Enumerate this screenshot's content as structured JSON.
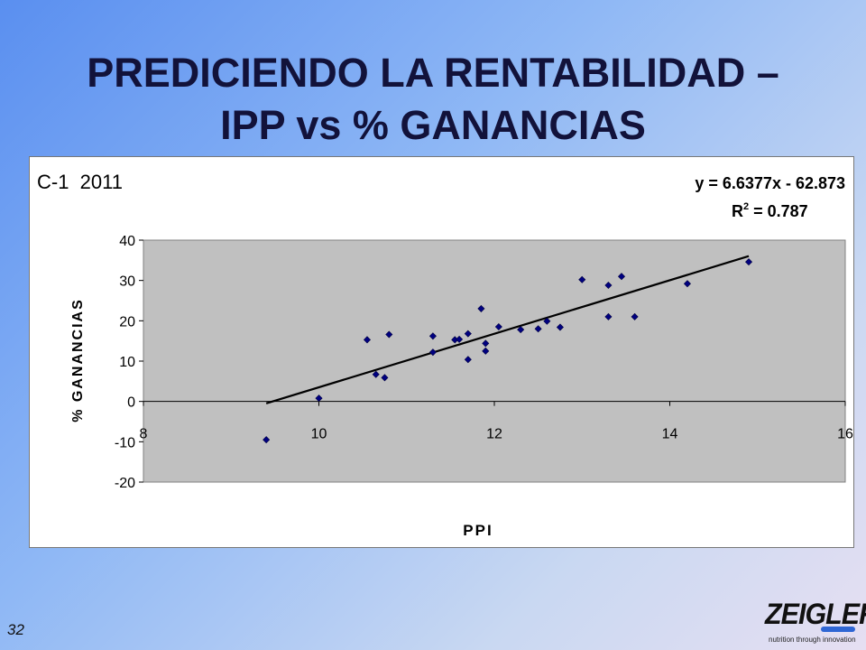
{
  "slide": {
    "title_line1": "PREDICIENDO LA RENTABILIDAD –",
    "title_line2": "IPP vs % GANANCIAS",
    "page_number": "32"
  },
  "logo": {
    "name": "ZEIGLER.",
    "tagline": "nutrition through innovation",
    "accent_color": "#2f66d4"
  },
  "chart_data": {
    "type": "scatter",
    "title": "C-1  2011",
    "equation": "y = 6.6377x - 62.873",
    "r2_label": "R",
    "r2_sup": "2",
    "r2_value": " = 0.787",
    "xlabel": "PPI",
    "ylabel": "% GANANCIAS",
    "xlim": [
      8,
      16
    ],
    "ylim": [
      -20,
      40
    ],
    "x_ticks": [
      8,
      10,
      12,
      14,
      16
    ],
    "y_ticks": [
      40,
      30,
      20,
      10,
      0,
      -10,
      -20
    ],
    "plot_background": "#c0c0c0",
    "marker_color": "#000080",
    "trendline": {
      "slope": 6.6377,
      "intercept": -62.873,
      "x_range": [
        9.4,
        14.9
      ]
    },
    "series": [
      {
        "points": [
          [
            9.4,
            -9.5
          ],
          [
            10.0,
            0.8
          ],
          [
            10.55,
            15.3
          ],
          [
            10.65,
            6.7
          ],
          [
            10.75,
            5.9
          ],
          [
            10.8,
            16.6
          ],
          [
            11.3,
            16.2
          ],
          [
            11.3,
            12.2
          ],
          [
            11.55,
            15.3
          ],
          [
            11.6,
            15.4
          ],
          [
            11.7,
            16.8
          ],
          [
            11.7,
            10.4
          ],
          [
            11.85,
            23.0
          ],
          [
            11.9,
            14.4
          ],
          [
            11.9,
            12.5
          ],
          [
            12.05,
            18.5
          ],
          [
            12.3,
            17.8
          ],
          [
            12.5,
            18.0
          ],
          [
            12.6,
            19.9
          ],
          [
            12.75,
            18.4
          ],
          [
            13.0,
            30.2
          ],
          [
            13.3,
            28.8
          ],
          [
            13.3,
            21.0
          ],
          [
            13.45,
            31.0
          ],
          [
            13.6,
            21.0
          ],
          [
            14.2,
            29.2
          ],
          [
            14.9,
            34.6
          ]
        ]
      }
    ]
  }
}
